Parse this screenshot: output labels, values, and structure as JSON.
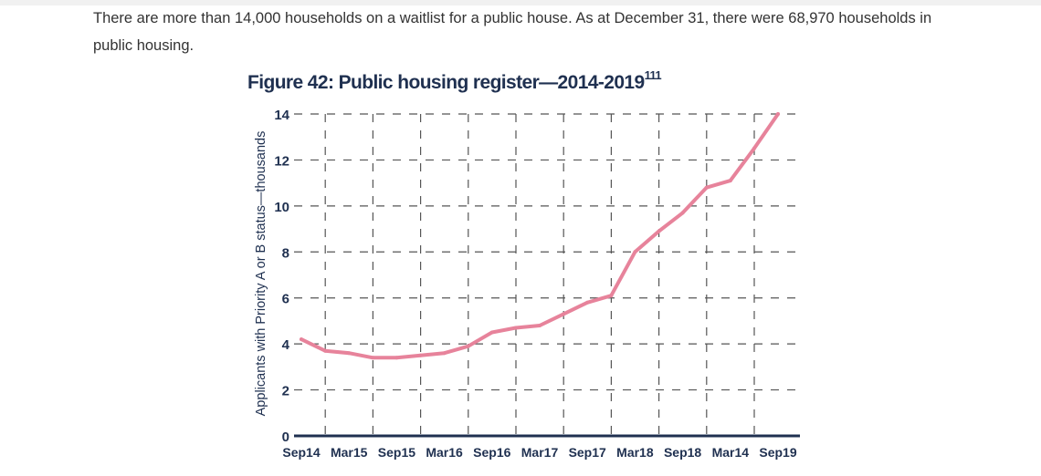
{
  "intro_text": "There are more than 14,000 households on a waitlist for a public house. As at December 31, there were 68,970 households in public housing.",
  "figure": {
    "title": "Figure 42: Public housing register—2014-2019",
    "footnote_ref": "111"
  },
  "colors": {
    "line": "#e7839b",
    "axis": "#1f3050",
    "grid": "#555555",
    "text": "#1f3050"
  },
  "chart_data": {
    "type": "line",
    "title": "Figure 42: Public housing register—2014-2019",
    "xlabel": "",
    "ylabel": "Applicants with Priority A or B status—thousands",
    "ylim": [
      0,
      14
    ],
    "yticks": [
      0,
      2,
      4,
      6,
      8,
      10,
      12,
      14
    ],
    "grid": true,
    "categories": [
      "Sep14",
      "Mar15",
      "Sep15",
      "Mar16",
      "Sep16",
      "Mar17",
      "Sep17",
      "Mar18",
      "Sep18",
      "Mar14",
      "Sep19"
    ],
    "series": [
      {
        "name": "Applicants with Priority A or B status",
        "x": [
          0,
          0.5,
          1,
          1.5,
          2,
          2.5,
          3,
          3.5,
          4,
          4.5,
          5,
          5.5,
          6,
          6.5,
          7,
          7.5,
          8,
          8.5,
          9,
          9.5,
          10
        ],
        "values": [
          4.2,
          3.7,
          3.6,
          3.4,
          3.4,
          3.5,
          3.6,
          3.9,
          4.5,
          4.7,
          4.8,
          5.3,
          5.8,
          6.1,
          8.0,
          8.9,
          9.7,
          10.8,
          11.1,
          12.5,
          14.0
        ]
      }
    ]
  }
}
